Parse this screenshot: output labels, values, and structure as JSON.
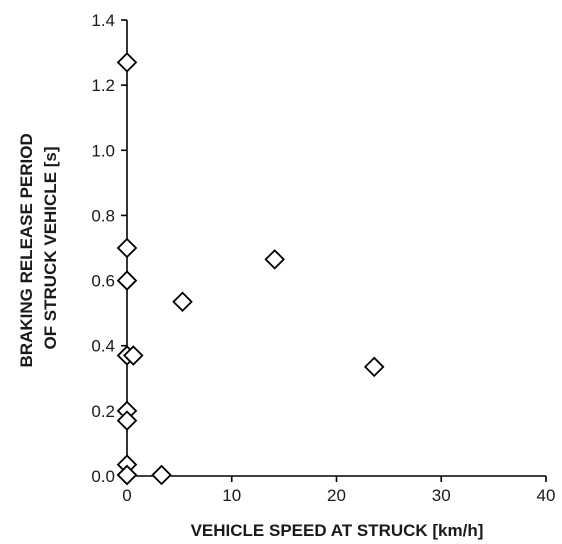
{
  "chart_data": {
    "type": "scatter",
    "xlabel": "VEHICLE SPEED AT STRUCK [km/h]",
    "ylabel_lines": [
      "BRAKING RELEASE PERIOD",
      "OF STRUCK VEHICLE [s]"
    ],
    "xlim": [
      0,
      40
    ],
    "ylim": [
      0,
      1.4
    ],
    "xticks": [
      0,
      10,
      20,
      30,
      40
    ],
    "yticks": [
      0.0,
      0.2,
      0.4,
      0.6,
      0.8,
      1.0,
      1.2,
      1.4
    ],
    "xtick_labels": [
      "0",
      "10",
      "20",
      "30",
      "40"
    ],
    "ytick_labels": [
      "0.0",
      "0.2",
      "0.4",
      "0.6",
      "0.8",
      "1.0",
      "1.2",
      "1.4"
    ],
    "grid": false,
    "legend": "none",
    "marker": "open-diamond",
    "series": [
      {
        "x": [
          0,
          0,
          0,
          0,
          0,
          0,
          0,
          0.6,
          0,
          0,
          0,
          3.3,
          5.3,
          14.1,
          23.6
        ],
        "y": [
          1.27,
          0.7,
          0.6,
          0.37,
          0.2,
          0.17,
          0.035,
          0.37,
          0.003,
          0.003,
          0.003,
          0.003,
          0.535,
          0.665,
          0.335
        ]
      }
    ]
  }
}
